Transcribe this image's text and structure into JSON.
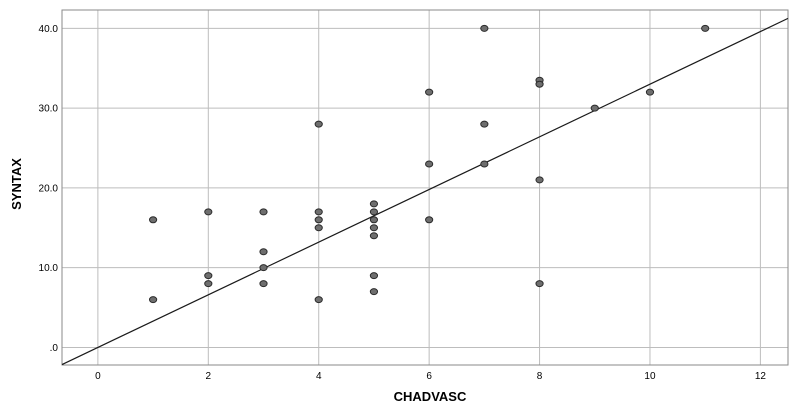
{
  "chart_data": {
    "type": "scatter",
    "xlabel": "CHADVASC",
    "ylabel": "SYNTAX",
    "xlim": [
      -0.65,
      12.5
    ],
    "ylim": [
      -2.2,
      42.3
    ],
    "xticks": [
      0,
      2,
      4,
      6,
      8,
      10,
      12
    ],
    "xtick_labels": [
      "0",
      "2",
      "4",
      "6",
      "8",
      "10",
      "12"
    ],
    "yticks": [
      0,
      10,
      20,
      30,
      40
    ],
    "ytick_labels": [
      ".0",
      "10.0",
      "20.0",
      "30.0",
      "40.0"
    ],
    "grid": true,
    "points": [
      {
        "x": 1,
        "y": 16
      },
      {
        "x": 1,
        "y": 6
      },
      {
        "x": 2,
        "y": 17
      },
      {
        "x": 2,
        "y": 9
      },
      {
        "x": 2,
        "y": 8
      },
      {
        "x": 3,
        "y": 17
      },
      {
        "x": 3,
        "y": 12
      },
      {
        "x": 3,
        "y": 10
      },
      {
        "x": 3,
        "y": 8
      },
      {
        "x": 4,
        "y": 28
      },
      {
        "x": 4,
        "y": 17
      },
      {
        "x": 4,
        "y": 16
      },
      {
        "x": 4,
        "y": 15
      },
      {
        "x": 4,
        "y": 6
      },
      {
        "x": 5,
        "y": 18
      },
      {
        "x": 5,
        "y": 17
      },
      {
        "x": 5,
        "y": 16
      },
      {
        "x": 5,
        "y": 15
      },
      {
        "x": 5,
        "y": 14
      },
      {
        "x": 5,
        "y": 9
      },
      {
        "x": 5,
        "y": 7
      },
      {
        "x": 6,
        "y": 32
      },
      {
        "x": 6,
        "y": 23
      },
      {
        "x": 6,
        "y": 16
      },
      {
        "x": 7,
        "y": 40
      },
      {
        "x": 7,
        "y": 28
      },
      {
        "x": 7,
        "y": 23
      },
      {
        "x": 8,
        "y": 33.5
      },
      {
        "x": 8,
        "y": 33
      },
      {
        "x": 8,
        "y": 21
      },
      {
        "x": 8,
        "y": 8
      },
      {
        "x": 9,
        "y": 30
      },
      {
        "x": 10,
        "y": 32
      },
      {
        "x": 11,
        "y": 40
      }
    ],
    "fit_line": {
      "intercept": 0,
      "slope": 3.3
    }
  }
}
